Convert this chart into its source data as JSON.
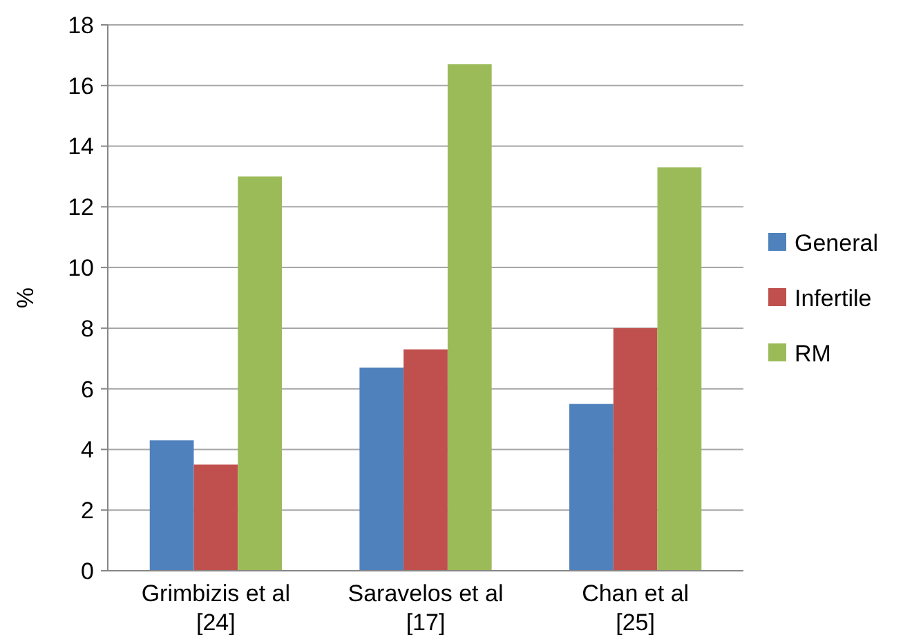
{
  "chart_data": {
    "type": "bar",
    "ylabel": "%",
    "categories": [
      "Grimbizis et al [24]",
      "Saravelos et al [17]",
      "Chan et al [25]"
    ],
    "series": [
      {
        "name": "General",
        "color": "#4f81bd",
        "values": [
          4.3,
          6.7,
          5.5
        ]
      },
      {
        "name": "Infertile",
        "color": "#c0504d",
        "values": [
          3.5,
          7.3,
          8
        ]
      },
      {
        "name": "RM",
        "color": "#9bbb59",
        "values": [
          13,
          16.7,
          13.3
        ]
      }
    ],
    "ylim": [
      0,
      18
    ],
    "yticks": [
      0,
      2,
      4,
      6,
      8,
      10,
      12,
      14,
      16,
      18
    ],
    "grid": "y",
    "legend": "right"
  }
}
